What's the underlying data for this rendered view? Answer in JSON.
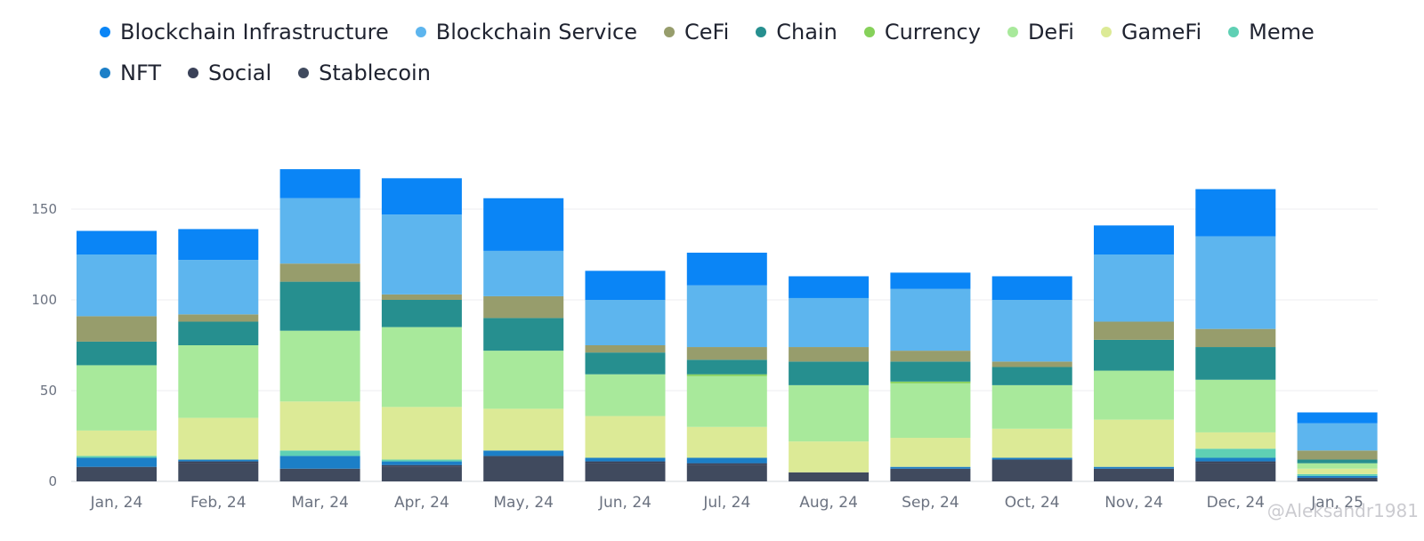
{
  "chart_data": {
    "type": "bar",
    "stacked": true,
    "title": "",
    "xlabel": "",
    "ylabel": "",
    "ylim": [
      0,
      175
    ],
    "yticks": [
      0,
      50,
      100,
      150
    ],
    "grid": true,
    "legend_position": "top-left",
    "categories": [
      "Jan, 24",
      "Feb, 24",
      "Mar, 24",
      "Apr, 24",
      "May, 24",
      "Jun, 24",
      "Jul, 24",
      "Aug, 24",
      "Sep, 24",
      "Oct, 24",
      "Nov, 24",
      "Dec, 24",
      "Jan, 25"
    ],
    "series": [
      {
        "name": "Stablecoin",
        "color": "#404a5e",
        "values": [
          8,
          10,
          7,
          8,
          14,
          10,
          9,
          5,
          7,
          12,
          7,
          10,
          2
        ]
      },
      {
        "name": "Social",
        "color": "#3a4158",
        "values": [
          0,
          1,
          0,
          1,
          0,
          1,
          1,
          0,
          0,
          0,
          0,
          1,
          0
        ]
      },
      {
        "name": "NFT",
        "color": "#1c7fc7",
        "values": [
          5,
          1,
          7,
          2,
          3,
          2,
          3,
          0,
          1,
          1,
          1,
          2,
          1
        ]
      },
      {
        "name": "Meme",
        "color": "#5fd0b4",
        "values": [
          1,
          0,
          3,
          1,
          0,
          0,
          0,
          0,
          0,
          0,
          0,
          5,
          1
        ]
      },
      {
        "name": "GameFi",
        "color": "#dcea96",
        "values": [
          14,
          23,
          27,
          29,
          23,
          23,
          17,
          17,
          16,
          16,
          26,
          9,
          3
        ]
      },
      {
        "name": "DeFi",
        "color": "#a8e99b",
        "values": [
          36,
          40,
          39,
          44,
          32,
          23,
          28,
          31,
          30,
          24,
          27,
          29,
          3
        ]
      },
      {
        "name": "Currency",
        "color": "#86d15a",
        "values": [
          0,
          0,
          0,
          0,
          0,
          0,
          1,
          0,
          1,
          0,
          0,
          0,
          0
        ]
      },
      {
        "name": "Chain",
        "color": "#268f8f",
        "values": [
          13,
          13,
          27,
          15,
          18,
          12,
          8,
          13,
          11,
          10,
          17,
          18,
          2
        ]
      },
      {
        "name": "CeFi",
        "color": "#979d6c",
        "values": [
          14,
          4,
          10,
          3,
          12,
          4,
          7,
          8,
          6,
          3,
          10,
          10,
          5
        ]
      },
      {
        "name": "Blockchain Service",
        "color": "#5db5ee",
        "values": [
          34,
          30,
          36,
          44,
          25,
          25,
          34,
          27,
          34,
          34,
          37,
          51,
          15
        ]
      },
      {
        "name": "Blockchain Infrastructure",
        "color": "#0a85f6",
        "values": [
          13,
          17,
          16,
          20,
          29,
          16,
          18,
          12,
          9,
          13,
          16,
          26,
          6
        ]
      }
    ]
  },
  "legend": [
    {
      "label": "Blockchain Infrastructure",
      "color": "#0a85f6"
    },
    {
      "label": "Blockchain Service",
      "color": "#5db5ee"
    },
    {
      "label": "CeFi",
      "color": "#979d6c"
    },
    {
      "label": "Chain",
      "color": "#268f8f"
    },
    {
      "label": "Currency",
      "color": "#86d15a"
    },
    {
      "label": "DeFi",
      "color": "#a8e99b"
    },
    {
      "label": "GameFi",
      "color": "#dcea96"
    },
    {
      "label": "Meme",
      "color": "#5fd0b4"
    },
    {
      "label": "NFT",
      "color": "#1c7fc7"
    },
    {
      "label": "Social",
      "color": "#3a4158"
    },
    {
      "label": "Stablecoin",
      "color": "#404a5e"
    }
  ],
  "watermark": "@Aleksandr1981"
}
